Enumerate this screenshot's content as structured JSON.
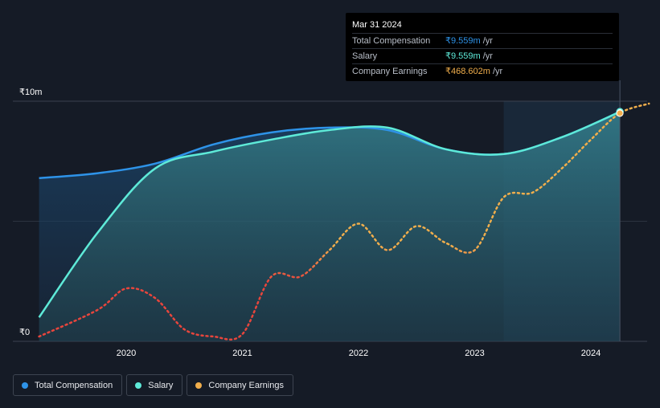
{
  "chart_data": {
    "type": "area",
    "y_unit_prefix": "₹",
    "y_ticks": [
      {
        "value": 0,
        "label": "₹0"
      },
      {
        "value": 10,
        "label": "₹10m"
      }
    ],
    "ylim": [
      0,
      10
    ],
    "xlim": [
      2019.2,
      2024.5
    ],
    "x_ticks": [
      {
        "value": 2020,
        "label": "2020"
      },
      {
        "value": 2021,
        "label": "2021"
      },
      {
        "value": 2022,
        "label": "2022"
      },
      {
        "value": 2023,
        "label": "2023"
      },
      {
        "value": 2024,
        "label": "2024"
      }
    ],
    "highlight_range": [
      2023.25,
      2024.25
    ],
    "series": [
      {
        "name": "Total Compensation",
        "color": "#2e93e8",
        "x": [
          2019.25,
          2019.75,
          2020.25,
          2020.75,
          2021.25,
          2021.75,
          2022.25,
          2022.75,
          2023.25,
          2023.75,
          2024.25
        ],
        "values": [
          6.8,
          7.0,
          7.4,
          8.2,
          8.7,
          8.9,
          8.8,
          8.0,
          7.8,
          8.5,
          9.559
        ]
      },
      {
        "name": "Salary",
        "color": "#5eead8",
        "x": [
          2019.25,
          2019.75,
          2020.25,
          2020.75,
          2021.25,
          2021.75,
          2022.25,
          2022.75,
          2023.25,
          2023.75,
          2024.25
        ],
        "values": [
          1.0,
          4.5,
          7.2,
          7.9,
          8.4,
          8.8,
          8.9,
          8.0,
          7.8,
          8.5,
          9.559
        ]
      },
      {
        "name": "Company Earnings",
        "color": "#f0ae4c",
        "dashed": true,
        "x": [
          2019.25,
          2019.75,
          2020.0,
          2020.25,
          2020.5,
          2020.75,
          2021.0,
          2021.25,
          2021.5,
          2021.75,
          2022.0,
          2022.25,
          2022.5,
          2022.75,
          2023.0,
          2023.25,
          2023.5,
          2023.75,
          2024.0,
          2024.25,
          2024.5
        ],
        "values": [
          0.2,
          1.3,
          2.2,
          1.8,
          0.5,
          0.2,
          0.3,
          2.7,
          2.7,
          3.8,
          4.9,
          3.8,
          4.8,
          4.1,
          3.8,
          6.0,
          6.2,
          7.2,
          8.4,
          9.5,
          9.9
        ]
      }
    ]
  },
  "tooltip": {
    "date": "Mar 31 2024",
    "rows": [
      {
        "label": "Total Compensation",
        "value": "₹9.559m",
        "unit": "/yr",
        "color": "#2e93e8"
      },
      {
        "label": "Salary",
        "value": "₹9.559m",
        "unit": "/yr",
        "color": "#5eead8"
      },
      {
        "label": "Company Earnings",
        "value": "₹468.602m",
        "unit": "/yr",
        "color": "#f0ae4c"
      }
    ]
  },
  "legend": [
    {
      "label": "Total Compensation",
      "color": "#2e93e8"
    },
    {
      "label": "Salary",
      "color": "#5eead8"
    },
    {
      "label": "Company Earnings",
      "color": "#f0ae4c"
    }
  ]
}
